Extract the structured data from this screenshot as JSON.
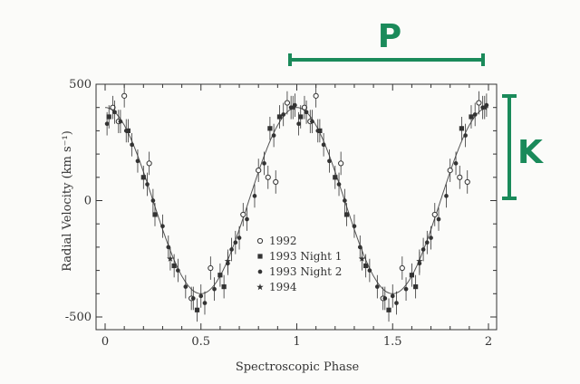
{
  "chart_data": {
    "type": "scatter",
    "xlabel": "Spectroscopic Phase",
    "ylabel": "Radial Velocity (km s⁻¹)",
    "xlim": [
      0,
      2
    ],
    "ylim": [
      -500,
      500
    ],
    "x_ticks": [
      "0",
      "0.5",
      "1",
      "1.5",
      "2"
    ],
    "y_ticks": [
      "500",
      "0",
      "-500"
    ],
    "grid": false,
    "legend_placement": "lower-center",
    "fit": {
      "type": "sinusoid",
      "amplitude": 400,
      "zero_point": 0,
      "period_in_phase": 1,
      "color": "#555555"
    },
    "series": [
      {
        "name": "1992",
        "marker": "open-circle",
        "x": [
          0.04,
          0.07,
          0.1,
          0.23,
          0.45,
          0.55,
          0.72,
          0.8,
          0.85,
          0.89,
          0.95,
          1.04,
          1.07,
          1.1,
          1.23,
          1.45,
          1.55,
          1.72,
          1.8,
          1.85,
          1.89,
          1.95
        ],
        "y": [
          400,
          340,
          450,
          160,
          -420,
          -290,
          -60,
          130,
          100,
          80,
          420,
          400,
          340,
          450,
          160,
          -420,
          -290,
          -60,
          130,
          100,
          80,
          420
        ],
        "err": [
          50,
          50,
          50,
          50,
          50,
          50,
          50,
          50,
          50,
          50,
          50,
          50,
          50,
          50,
          50,
          50,
          50,
          50,
          50,
          50,
          50,
          50
        ]
      },
      {
        "name": "1993 Night 1",
        "marker": "filled-square",
        "x": [
          0.02,
          0.12,
          0.2,
          0.26,
          0.36,
          0.48,
          0.6,
          0.62,
          0.86,
          0.91,
          1.02,
          1.12,
          1.2,
          1.26,
          1.36,
          1.48,
          1.6,
          1.62,
          1.86,
          1.91
        ],
        "y": [
          360,
          300,
          100,
          -60,
          -280,
          -470,
          -320,
          -370,
          310,
          360,
          360,
          300,
          100,
          -60,
          -280,
          -470,
          -320,
          -370,
          310,
          360
        ],
        "err": [
          50,
          50,
          50,
          50,
          50,
          50,
          50,
          50,
          50,
          50,
          50,
          50,
          50,
          50,
          50,
          50,
          50,
          50,
          50,
          50
        ]
      },
      {
        "name": "1993 Night 2",
        "marker": "filled-circle",
        "x": [
          0.01,
          0.05,
          0.08,
          0.11,
          0.14,
          0.17,
          0.22,
          0.25,
          0.3,
          0.33,
          0.38,
          0.42,
          0.46,
          0.5,
          0.52,
          0.57,
          0.64,
          0.66,
          0.68,
          0.7,
          0.74,
          0.78,
          0.83,
          0.88,
          0.93,
          0.97,
          0.99,
          1.01,
          1.05,
          1.08,
          1.11,
          1.14,
          1.17,
          1.22,
          1.25,
          1.3,
          1.33,
          1.38,
          1.42,
          1.46,
          1.5,
          1.52,
          1.57,
          1.64,
          1.66,
          1.68,
          1.7,
          1.74,
          1.78,
          1.83,
          1.88,
          1.93,
          1.97,
          1.99
        ],
        "y": [
          330,
          380,
          340,
          300,
          240,
          170,
          70,
          0,
          -110,
          -200,
          -300,
          -370,
          -420,
          -410,
          -440,
          -380,
          -270,
          -210,
          -180,
          -160,
          -80,
          20,
          160,
          280,
          370,
          400,
          410,
          330,
          380,
          340,
          300,
          240,
          170,
          70,
          0,
          -110,
          -200,
          -300,
          -370,
          -420,
          -410,
          -440,
          -380,
          -270,
          -210,
          -180,
          -160,
          -80,
          20,
          160,
          280,
          370,
          400,
          410
        ],
        "err": [
          50,
          50,
          50,
          50,
          50,
          50,
          50,
          50,
          50,
          50,
          50,
          50,
          50,
          50,
          50,
          50,
          50,
          50,
          50,
          50,
          50,
          50,
          50,
          50,
          50,
          50,
          50,
          50,
          50,
          50,
          50,
          50,
          50,
          50,
          50,
          50,
          50,
          50,
          50,
          50,
          50,
          50,
          50,
          50,
          50,
          50,
          50,
          50,
          50,
          50,
          50,
          50,
          50,
          50
        ]
      },
      {
        "name": "1994",
        "marker": "star",
        "x": [
          0.34,
          0.64,
          0.98,
          1.34,
          1.64,
          1.98
        ],
        "y": [
          -250,
          -260,
          400,
          -250,
          -260,
          400
        ],
        "err": [
          50,
          50,
          50,
          50,
          50,
          50
        ]
      }
    ]
  },
  "annotations": {
    "period_label": "P",
    "amplitude_label": "K",
    "color": "#1a8a5a"
  }
}
